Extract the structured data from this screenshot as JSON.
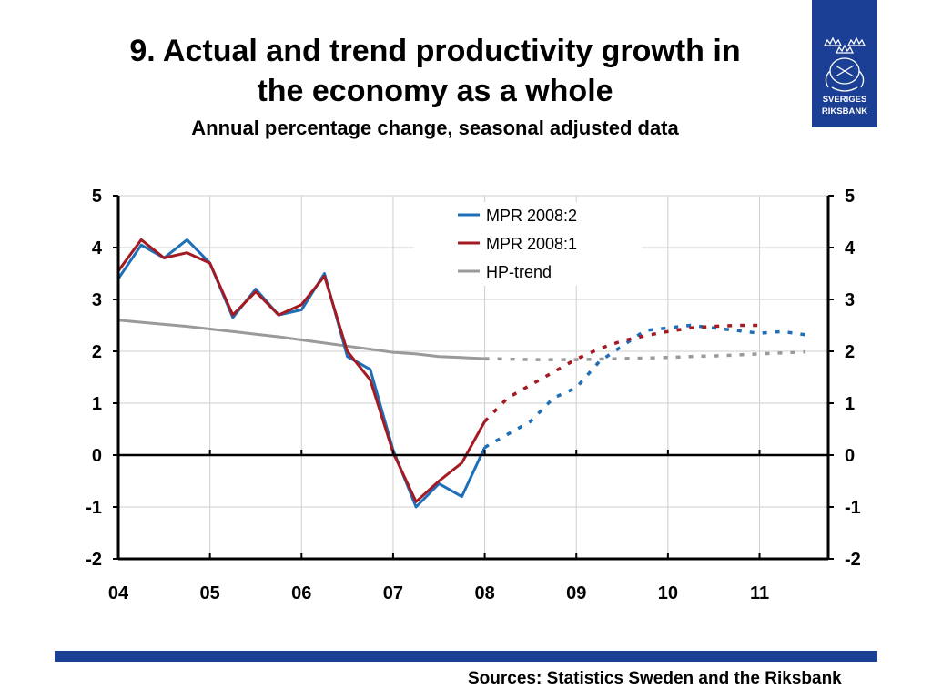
{
  "title_line1": "9. Actual and trend productivity growth in",
  "title_line2": "the economy as a whole",
  "subtitle": "Annual percentage change, seasonal adjusted data",
  "sources": "Sources: Statistics Sweden and the Riksbank",
  "logo": {
    "line1": "SVERIGES",
    "line2": "RIKSBANK",
    "color": "#1a3f94"
  },
  "colors": {
    "mpr2": "#1f6fb8",
    "mpr1": "#a31a22",
    "trend": "#9a9a9a",
    "banner": "#1a3f94"
  },
  "chart_data": {
    "type": "line",
    "x_tick_labels": [
      "04",
      "05",
      "06",
      "07",
      "08",
      "09",
      "10",
      "11"
    ],
    "y_ticks": [
      5,
      4,
      3,
      2,
      1,
      0,
      -1,
      -2
    ],
    "ylim": [
      -2,
      5
    ],
    "xlim": [
      2004.0,
      2011.75
    ],
    "grid": "horizontal and vertical",
    "legend_position": "top-center",
    "solid_until": 2008.0,
    "series": [
      {
        "name": "MPR 2008:2",
        "color": "#1f6fb8",
        "x": [
          2004.0,
          2004.25,
          2004.5,
          2004.75,
          2005.0,
          2005.25,
          2005.5,
          2005.75,
          2006.0,
          2006.25,
          2006.5,
          2006.75,
          2007.0,
          2007.25,
          2007.5,
          2007.75,
          2008.0,
          2008.25,
          2008.5,
          2008.75,
          2009.0,
          2009.25,
          2009.5,
          2009.75,
          2010.0,
          2010.25,
          2010.5,
          2010.75,
          2011.0,
          2011.25,
          2011.5
        ],
        "values": [
          3.4,
          4.05,
          3.8,
          4.15,
          3.7,
          2.65,
          3.2,
          2.7,
          2.8,
          3.5,
          1.9,
          1.65,
          0.1,
          -1.0,
          -0.55,
          -0.8,
          0.15,
          0.4,
          0.65,
          1.1,
          1.3,
          1.8,
          2.1,
          2.4,
          2.45,
          2.5,
          2.45,
          2.4,
          2.35,
          2.38,
          2.32
        ]
      },
      {
        "name": "MPR 2008:1",
        "color": "#a31a22",
        "x": [
          2004.0,
          2004.25,
          2004.5,
          2004.75,
          2005.0,
          2005.25,
          2005.5,
          2005.75,
          2006.0,
          2006.25,
          2006.5,
          2006.75,
          2007.0,
          2007.25,
          2007.5,
          2007.75,
          2008.0,
          2008.25,
          2008.5,
          2008.75,
          2009.0,
          2009.25,
          2009.5,
          2009.75,
          2010.0,
          2010.25,
          2010.5,
          2010.75,
          2011.0
        ],
        "values": [
          3.55,
          4.15,
          3.8,
          3.9,
          3.7,
          2.7,
          3.15,
          2.7,
          2.9,
          3.45,
          2.0,
          1.45,
          0.05,
          -0.9,
          -0.5,
          -0.15,
          0.65,
          1.1,
          1.35,
          1.6,
          1.85,
          2.05,
          2.2,
          2.3,
          2.38,
          2.45,
          2.48,
          2.5,
          2.5
        ]
      },
      {
        "name": "HP-trend",
        "color": "#9a9a9a",
        "x": [
          2004.0,
          2004.25,
          2004.5,
          2004.75,
          2005.0,
          2005.25,
          2005.5,
          2005.75,
          2006.0,
          2006.25,
          2006.5,
          2006.75,
          2007.0,
          2007.25,
          2007.5,
          2007.75,
          2008.0,
          2008.25,
          2008.5,
          2008.75,
          2009.0,
          2009.25,
          2009.5,
          2009.75,
          2010.0,
          2010.25,
          2010.5,
          2010.75,
          2011.0,
          2011.25,
          2011.5
        ],
        "values": [
          2.6,
          2.56,
          2.52,
          2.48,
          2.43,
          2.38,
          2.33,
          2.28,
          2.22,
          2.16,
          2.1,
          2.04,
          1.98,
          1.95,
          1.9,
          1.88,
          1.86,
          1.85,
          1.84,
          1.84,
          1.84,
          1.85,
          1.86,
          1.87,
          1.88,
          1.9,
          1.91,
          1.93,
          1.95,
          1.97,
          1.99
        ]
      }
    ]
  }
}
